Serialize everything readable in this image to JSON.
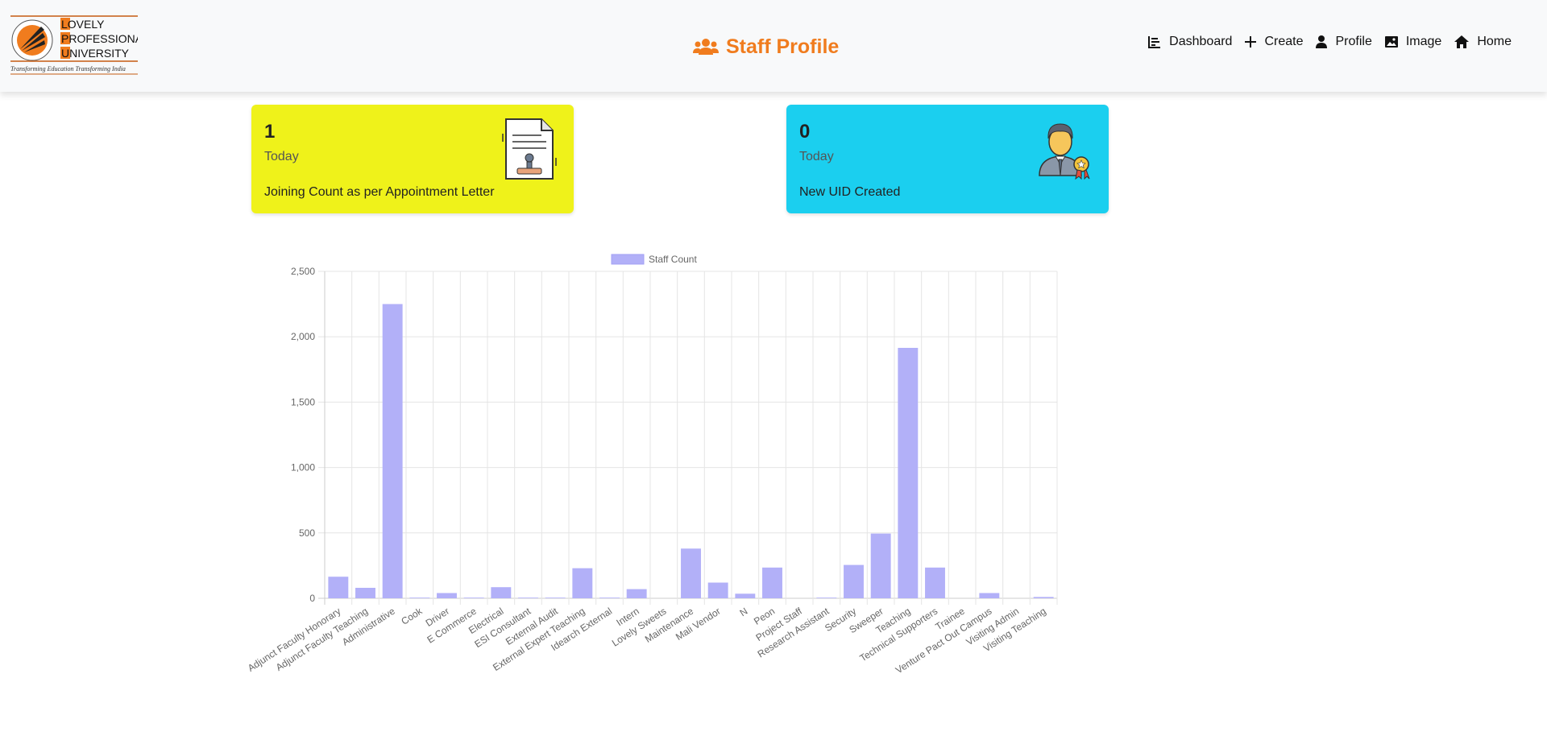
{
  "header": {
    "title": "Staff Profile",
    "logo": {
      "line1": "LOVELY",
      "line2": "PROFESSIONAL",
      "line3": "UNIVERSITY",
      "tagline": "Transforming Education Transforming India"
    },
    "nav": [
      {
        "label": "Dashboard",
        "icon": "bar-chart-icon"
      },
      {
        "label": "Create",
        "icon": "plus-icon"
      },
      {
        "label": "Profile",
        "icon": "person-icon"
      },
      {
        "label": "Image",
        "icon": "image-icon"
      },
      {
        "label": "Home",
        "icon": "home-icon"
      }
    ]
  },
  "cards": {
    "joining": {
      "count": "1",
      "period": "Today",
      "desc": "Joining Count as per Appointment Letter",
      "color": "#eff21a"
    },
    "uid": {
      "count": "0",
      "period": "Today",
      "desc": "New UID Created",
      "color": "#1bcfef"
    }
  },
  "colors": {
    "accent": "#f07c1e",
    "bar": "#b2b0f8",
    "bar_border": "#a3a1f5"
  },
  "chart_data": {
    "type": "bar",
    "legend": "Staff Count",
    "categories": [
      "Adjunct Faculty Honorary",
      "Adjunct Faculty Teaching",
      "Administrative",
      "Cook",
      "Driver",
      "E Commerce",
      "Electrical",
      "ESI Consultant",
      "External Audit",
      "External Expert Teaching",
      "Idearch External",
      "Intern",
      "Lovely Sweets",
      "Maintenance",
      "Mali Vendor",
      "N",
      "Peon",
      "Project Staff",
      "Research Assistant",
      "Security",
      "Sweeper",
      "Teaching",
      "Technical Supporters",
      "Trainee",
      "Venture Pact Out Campus",
      "Visiting Admin",
      "Visiting Teaching"
    ],
    "values": [
      165,
      80,
      2250,
      5,
      40,
      5,
      85,
      5,
      5,
      230,
      5,
      70,
      0,
      380,
      120,
      35,
      235,
      0,
      5,
      255,
      495,
      1915,
      235,
      0,
      40,
      0,
      10
    ],
    "ylim": [
      0,
      2500
    ],
    "yticks": [
      "0",
      "500",
      "1,000",
      "1,500",
      "2,000",
      "2,500"
    ],
    "grid": true,
    "legend_position": "top"
  }
}
